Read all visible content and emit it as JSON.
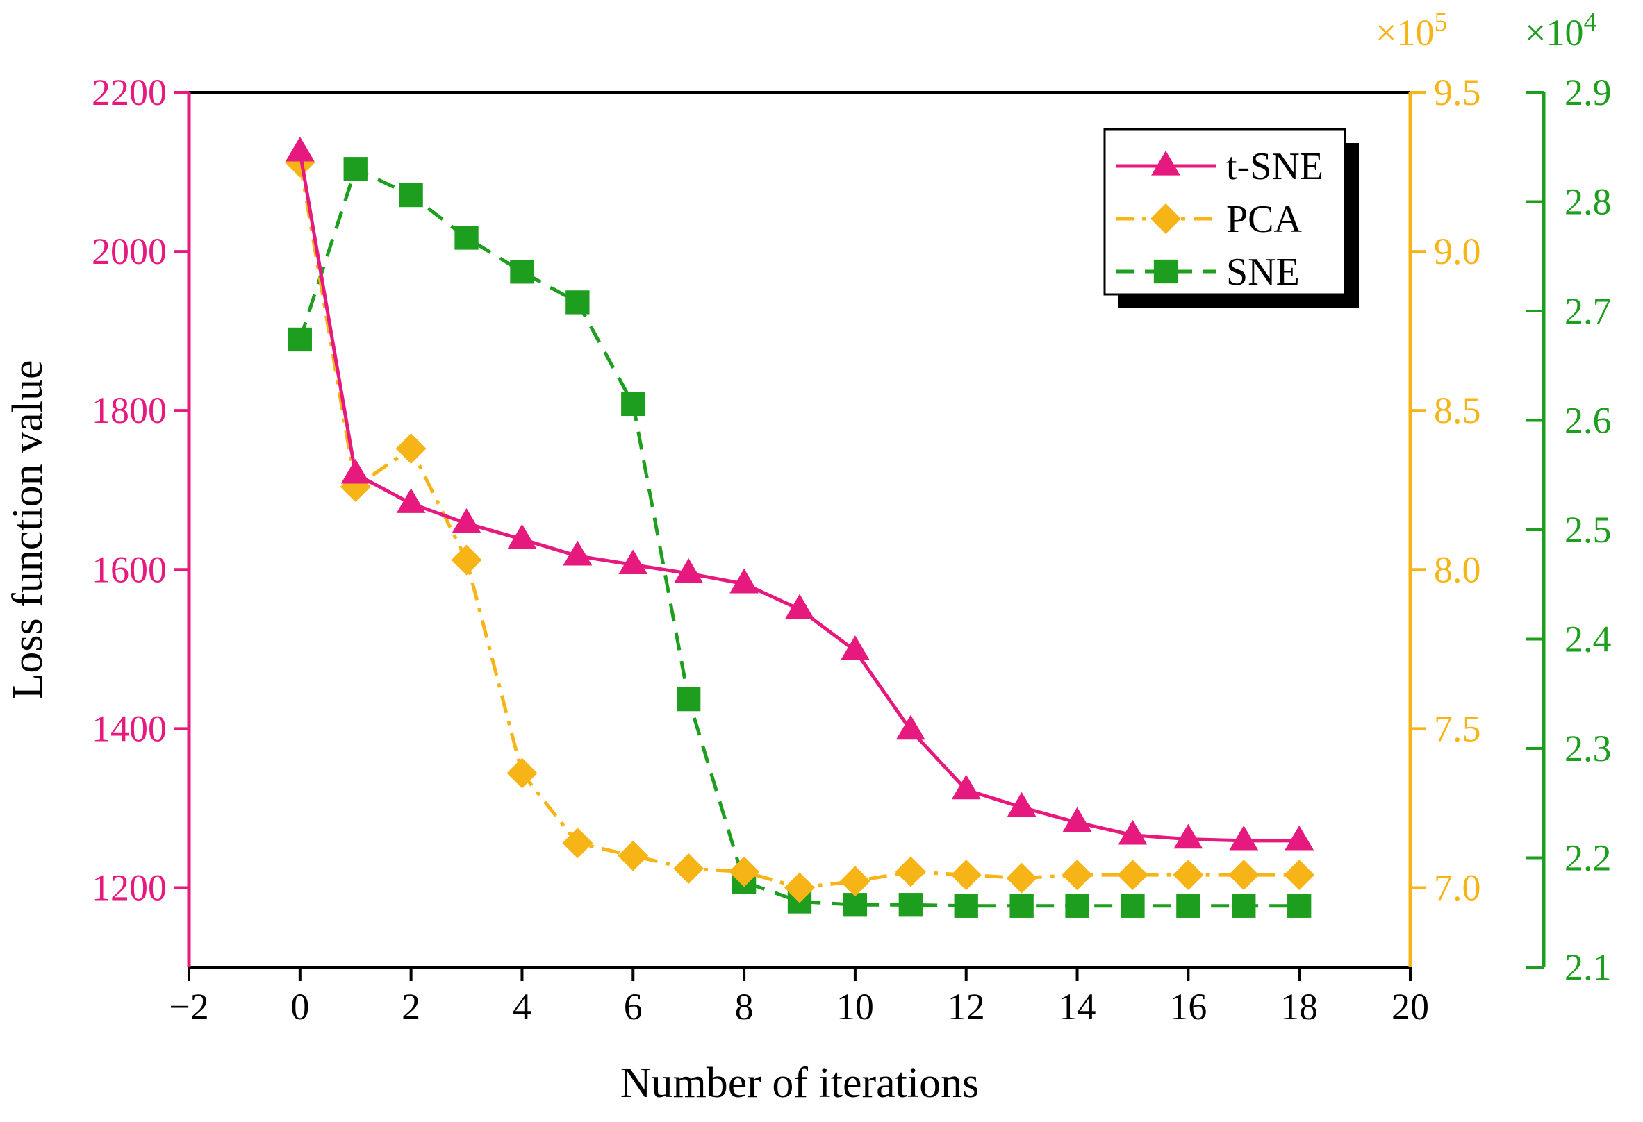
{
  "chart_data": {
    "type": "line",
    "xlabel": "Number of iterations",
    "x_axis": {
      "range": [
        -2,
        20
      ],
      "ticks": [
        -2,
        0,
        2,
        4,
        6,
        8,
        10,
        12,
        14,
        16,
        18,
        20
      ],
      "tick_labels": [
        "−2",
        "0",
        "2",
        "4",
        "6",
        "8",
        "10",
        "12",
        "14",
        "16",
        "18",
        "20"
      ]
    },
    "y_axes": [
      {
        "id": "left",
        "label": "Loss function value",
        "color": "#e6197e",
        "range": [
          1100,
          2200
        ],
        "ticks": [
          1200,
          1400,
          1600,
          1800,
          2000,
          2200
        ],
        "tick_labels": [
          "1200",
          "1400",
          "1600",
          "1800",
          "2000",
          "2200"
        ],
        "multiplier": ""
      },
      {
        "id": "right1",
        "label": "",
        "color": "#f7b417",
        "range": [
          6.75,
          9.5
        ],
        "ticks": [
          7.0,
          7.5,
          8.0,
          8.5,
          9.0,
          9.5
        ],
        "tick_labels": [
          "7.0",
          "7.5",
          "8.0",
          "8.5",
          "9.0",
          "9.5"
        ],
        "multiplier": "×10^5",
        "multiplier_base": "×10",
        "multiplier_exp": "5"
      },
      {
        "id": "right2",
        "label": "",
        "color": "#1e9e1e",
        "range": [
          2.1,
          2.9
        ],
        "ticks": [
          2.1,
          2.2,
          2.3,
          2.4,
          2.5,
          2.6,
          2.7,
          2.8,
          2.9
        ],
        "tick_labels": [
          "2.1",
          "2.2",
          "2.3",
          "2.4",
          "2.5",
          "2.6",
          "2.7",
          "2.8",
          "2.9"
        ],
        "multiplier": "×10^4",
        "multiplier_base": "×10",
        "multiplier_exp": "4"
      }
    ],
    "legend": {
      "position": "top-right",
      "box_shadow": true
    },
    "grid": false,
    "series": [
      {
        "name": "t-SNE",
        "axis": "left",
        "color": "#e6197e",
        "line": "solid",
        "marker": "triangle",
        "x": [
          0,
          1,
          2,
          3,
          4,
          5,
          6,
          7,
          8,
          9,
          10,
          11,
          12,
          13,
          14,
          15,
          16,
          17,
          18
        ],
        "values": [
          2125,
          1720,
          1683,
          1658,
          1638,
          1617,
          1606,
          1595,
          1582,
          1550,
          1498,
          1398,
          1323,
          1301,
          1282,
          1266,
          1261,
          1259,
          1259
        ]
      },
      {
        "name": "PCA",
        "axis": "right1",
        "color": "#f7b417",
        "line": "dashdot",
        "marker": "diamond",
        "x": [
          0,
          1,
          2,
          3,
          4,
          5,
          6,
          7,
          8,
          9,
          10,
          11,
          12,
          13,
          14,
          15,
          16,
          17,
          18
        ],
        "values": [
          9.28,
          8.26,
          8.38,
          8.03,
          7.36,
          7.14,
          7.1,
          7.06,
          7.05,
          7.0,
          7.02,
          7.05,
          7.04,
          7.03,
          7.04,
          7.04,
          7.04,
          7.04,
          7.04
        ]
      },
      {
        "name": "SNE",
        "axis": "right2",
        "color": "#1e9e1e",
        "line": "dashed",
        "marker": "square",
        "x": [
          0,
          1,
          2,
          3,
          4,
          5,
          6,
          7,
          8,
          9,
          10,
          11,
          12,
          13,
          14,
          15,
          16,
          17,
          18
        ],
        "values": [
          2.674,
          2.83,
          2.806,
          2.767,
          2.736,
          2.708,
          2.615,
          2.345,
          2.178,
          2.16,
          2.157,
          2.157,
          2.156,
          2.156,
          2.156,
          2.156,
          2.156,
          2.156,
          2.156
        ]
      }
    ]
  }
}
